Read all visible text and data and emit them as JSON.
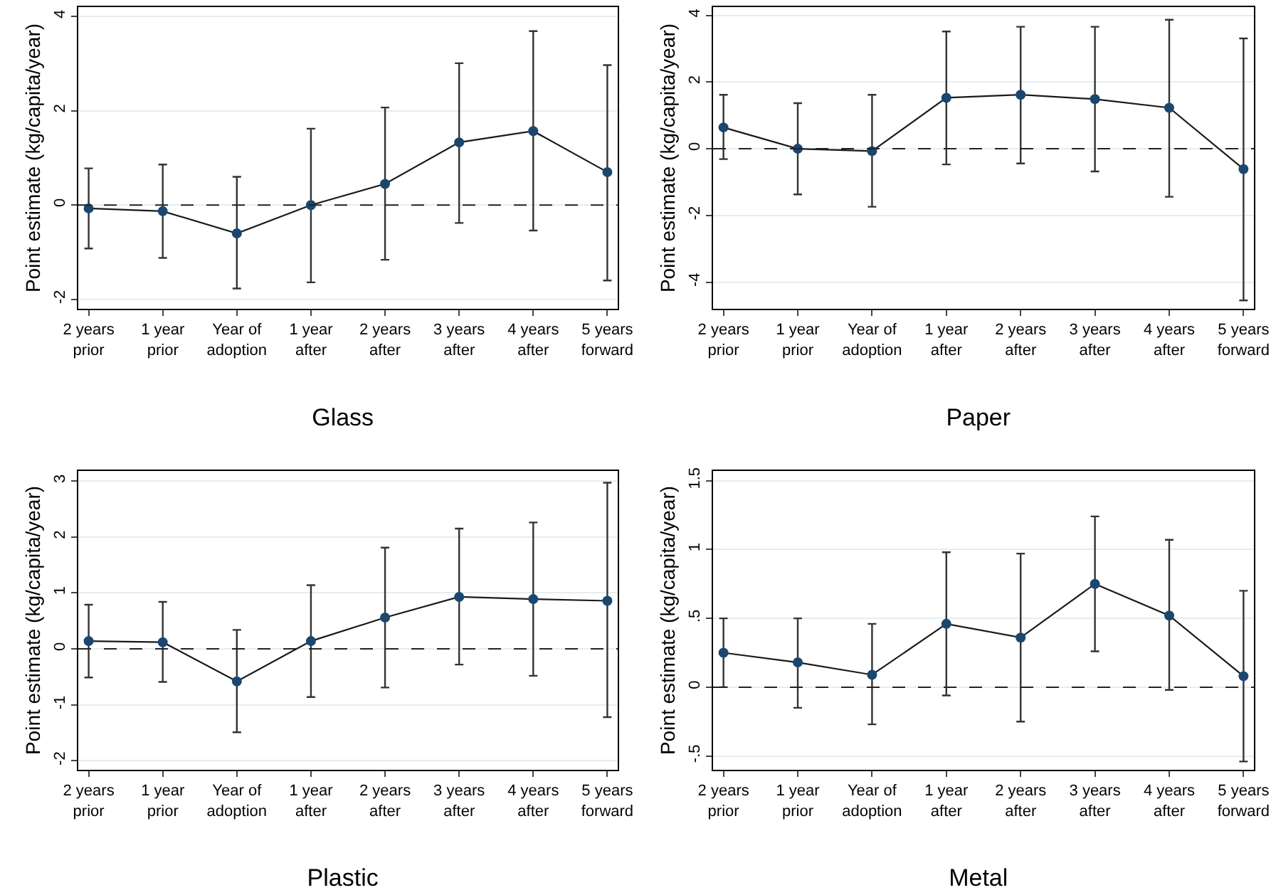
{
  "chart_data": [
    {
      "type": "line",
      "title": "Glass",
      "ylabel": "Point estimate (kg/capita/year)",
      "categories": [
        "2 years prior",
        "1 year prior",
        "Year of adoption",
        "1 year after",
        "2 years after",
        "3 years after",
        "4 years after",
        "5 years forward"
      ],
      "series": [
        {
          "color": "#1a476f",
          "values": [
            -0.07,
            -0.13,
            -0.6,
            0,
            0.45,
            1.33,
            1.57,
            0.7
          ],
          "errors": [
            [
              -0.92,
              0.78
            ],
            [
              -1.12,
              0.86
            ],
            [
              -1.77,
              0.6
            ],
            [
              -1.64,
              1.62
            ],
            [
              -1.16,
              2.07
            ],
            [
              -0.38,
              3.01
            ],
            [
              -0.54,
              3.69
            ],
            [
              -1.6,
              2.97
            ]
          ]
        }
      ],
      "ylim": [
        -2.2,
        4.2
      ],
      "yticks": [
        -2,
        0,
        2,
        4
      ],
      "grid": "y",
      "marker": "circle",
      "ref_lines": [
        {
          "axis": "y",
          "value": 0,
          "line_style": "dashed"
        }
      ]
    },
    {
      "type": "line",
      "title": "Paper",
      "ylabel": "Point estimate (kg/capita/year)",
      "categories": [
        "2 years prior",
        "1 year prior",
        "Year of adoption",
        "1 year after",
        "2 years after",
        "3 years after",
        "4 years after",
        "5 years forward"
      ],
      "series": [
        {
          "color": "#1a476f",
          "values": [
            0.64,
            0,
            -0.07,
            1.53,
            1.62,
            1.49,
            1.23,
            -0.61
          ],
          "errors": [
            [
              -0.31,
              1.62
            ],
            [
              -1.37,
              1.37
            ],
            [
              -1.74,
              1.62
            ],
            [
              -0.47,
              3.52
            ],
            [
              -0.44,
              3.66
            ],
            [
              -0.68,
              3.66
            ],
            [
              -1.44,
              3.87
            ],
            [
              -4.55,
              3.31
            ]
          ]
        }
      ],
      "ylim": [
        -4.8,
        4.25
      ],
      "yticks": [
        -4,
        -2,
        0,
        2,
        4
      ],
      "grid": "y",
      "marker": "circle",
      "ref_lines": [
        {
          "axis": "y",
          "value": 0,
          "line_style": "dashed"
        }
      ]
    },
    {
      "type": "line",
      "title": "Plastic",
      "ylabel": "Point estimate (kg/capita/year)",
      "categories": [
        "2 years prior",
        "1 year prior",
        "Year of adoption",
        "1 year after",
        "2 years after",
        "3 years after",
        "4 years after",
        "5 years forward"
      ],
      "series": [
        {
          "color": "#1a476f",
          "values": [
            0.14,
            0.12,
            -0.58,
            0.14,
            0.56,
            0.93,
            0.89,
            0.86
          ],
          "errors": [
            [
              -0.51,
              0.79
            ],
            [
              -0.59,
              0.84
            ],
            [
              -1.49,
              0.34
            ],
            [
              -0.86,
              1.14
            ],
            [
              -0.69,
              1.81
            ],
            [
              -0.28,
              2.15
            ],
            [
              -0.48,
              2.26
            ],
            [
              -1.22,
              2.97
            ]
          ]
        }
      ],
      "ylim": [
        -2.16,
        3.18
      ],
      "yticks": [
        -2,
        -1,
        0,
        1,
        2,
        3
      ],
      "grid": "y",
      "marker": "circle",
      "ref_lines": [
        {
          "axis": "y",
          "value": 0,
          "line_style": "dashed"
        }
      ]
    },
    {
      "type": "line",
      "title": "Metal",
      "ylabel": "Point estimate (kg/capita/year)",
      "categories": [
        "2 years prior",
        "1 year prior",
        "Year of adoption",
        "1 year after",
        "2 years after",
        "3 years after",
        "4 years after",
        "5 years forward"
      ],
      "series": [
        {
          "color": "#1a476f",
          "values": [
            0.25,
            0.18,
            0.09,
            0.46,
            0.36,
            0.75,
            0.52,
            0.08
          ],
          "errors": [
            [
              0,
              0.5
            ],
            [
              -0.15,
              0.5
            ],
            [
              -0.27,
              0.46
            ],
            [
              -0.06,
              0.98
            ],
            [
              -0.25,
              0.97
            ],
            [
              0.26,
              1.24
            ],
            [
              -0.02,
              1.07
            ],
            [
              -0.54,
              0.7
            ]
          ]
        }
      ],
      "ylim": [
        -0.6,
        1.57
      ],
      "yticks": [
        {
          "value": -0.5,
          "label": "-.5"
        },
        0,
        {
          "value": 0.5,
          "label": ".5"
        },
        1,
        1.5
      ],
      "grid": "y",
      "marker": "circle",
      "ref_lines": [
        {
          "axis": "y",
          "value": 0,
          "line_style": "dashed"
        }
      ]
    }
  ]
}
